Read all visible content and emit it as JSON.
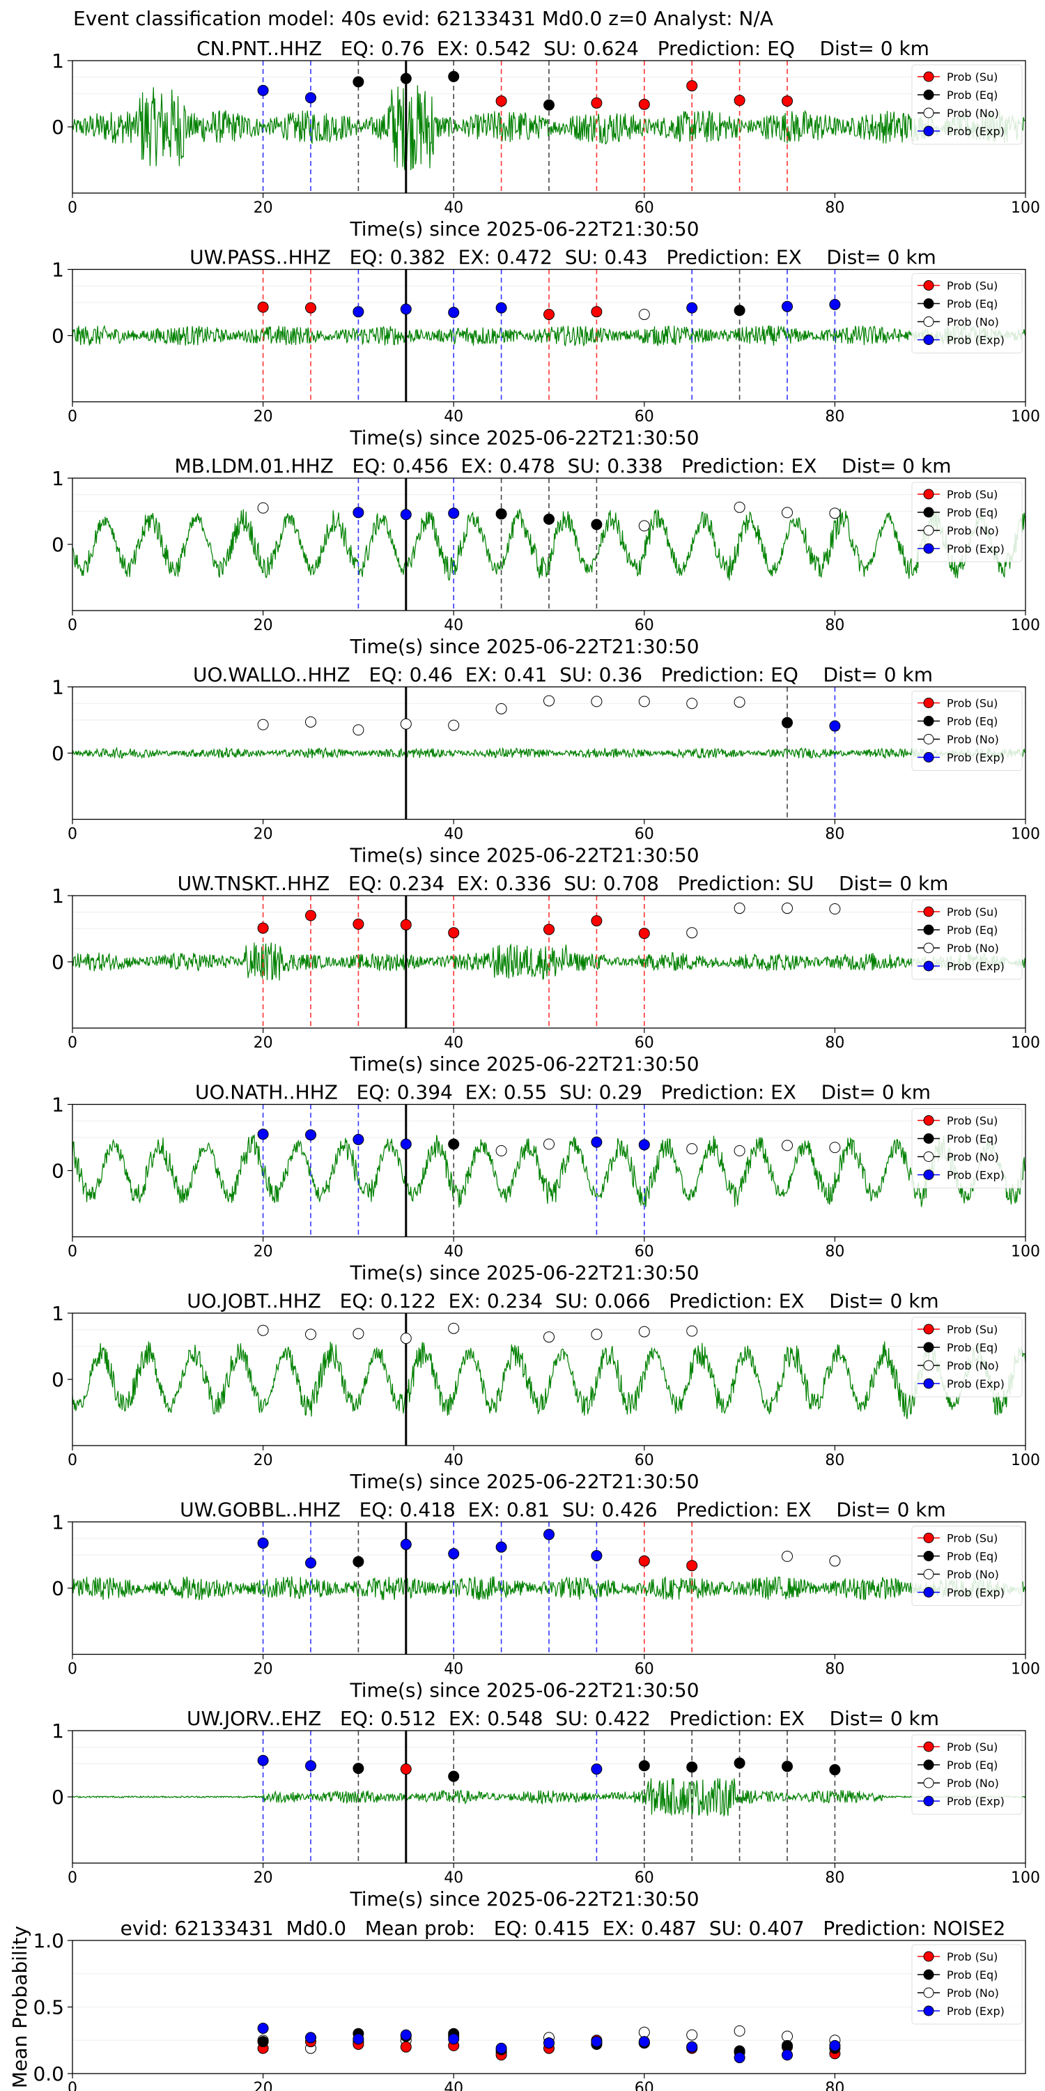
{
  "figure": {
    "suptitle": "Event classification model: 40s evid: 62133431 Md0.0 z=0 Analyst: N/A",
    "xlabel": "Time(s) since 2025-06-22T21:30:50",
    "legend": [
      "Prob (Su)",
      "Prob (Eq)",
      "Prob (No)",
      "Prob (Exp)"
    ],
    "class_colors": {
      "Su": "#ff0000",
      "Eq": "#000000",
      "No": "#ffffff",
      "Exp": "#0000ff"
    },
    "waveform_color": "#008000"
  },
  "chart_data": [
    {
      "type": "line",
      "title": "CN.PNT..HHZ   EQ: 0.76  EX: 0.542  SU: 0.624   Prediction: EQ    Dist= 0 km",
      "xlim": [
        0,
        100
      ],
      "ylim": [
        -1,
        1
      ],
      "xticks": [
        0,
        20,
        40,
        60,
        80,
        100
      ],
      "yticks": [
        0,
        1
      ],
      "event_line_x": 35,
      "amplitude": 1.0,
      "points": [
        {
          "x": 20,
          "y": 0.55,
          "cls": "Exp"
        },
        {
          "x": 25,
          "y": 0.44,
          "cls": "Exp"
        },
        {
          "x": 30,
          "y": 0.68,
          "cls": "Eq"
        },
        {
          "x": 35,
          "y": 0.73,
          "cls": "Eq"
        },
        {
          "x": 40,
          "y": 0.76,
          "cls": "Eq"
        },
        {
          "x": 45,
          "y": 0.39,
          "cls": "Su"
        },
        {
          "x": 50,
          "y": 0.33,
          "cls": "Eq"
        },
        {
          "x": 55,
          "y": 0.36,
          "cls": "Su"
        },
        {
          "x": 60,
          "y": 0.34,
          "cls": "Su"
        },
        {
          "x": 65,
          "y": 0.62,
          "cls": "Su"
        },
        {
          "x": 70,
          "y": 0.4,
          "cls": "Su"
        },
        {
          "x": 75,
          "y": 0.39,
          "cls": "Su"
        }
      ]
    },
    {
      "type": "line",
      "title": "UW.PASS..HHZ   EQ: 0.382  EX: 0.472  SU: 0.43   Prediction: EX    Dist= 0 km",
      "xlim": [
        0,
        100
      ],
      "ylim": [
        -1,
        1
      ],
      "xticks": [
        0,
        20,
        40,
        60,
        80,
        100
      ],
      "yticks": [
        0,
        1
      ],
      "event_line_x": 35,
      "amplitude": 0.6,
      "points": [
        {
          "x": 20,
          "y": 0.43,
          "cls": "Su"
        },
        {
          "x": 25,
          "y": 0.42,
          "cls": "Su"
        },
        {
          "x": 30,
          "y": 0.36,
          "cls": "Exp"
        },
        {
          "x": 35,
          "y": 0.4,
          "cls": "Exp"
        },
        {
          "x": 40,
          "y": 0.35,
          "cls": "Exp"
        },
        {
          "x": 45,
          "y": 0.42,
          "cls": "Exp"
        },
        {
          "x": 50,
          "y": 0.32,
          "cls": "Su"
        },
        {
          "x": 55,
          "y": 0.36,
          "cls": "Su"
        },
        {
          "x": 60,
          "y": 0.32,
          "cls": "No"
        },
        {
          "x": 65,
          "y": 0.42,
          "cls": "Exp"
        },
        {
          "x": 70,
          "y": 0.38,
          "cls": "Eq"
        },
        {
          "x": 75,
          "y": 0.44,
          "cls": "Exp"
        },
        {
          "x": 80,
          "y": 0.47,
          "cls": "Exp"
        }
      ]
    },
    {
      "type": "line",
      "title": "MB.LDM.01.HHZ   EQ: 0.456  EX: 0.478  SU: 0.338   Prediction: EX    Dist= 0 km",
      "xlim": [
        0,
        100
      ],
      "ylim": [
        -1,
        1
      ],
      "xticks": [
        0,
        20,
        40,
        60,
        80,
        100
      ],
      "yticks": [
        0,
        1
      ],
      "event_line_x": 35,
      "amplitude": 0.75,
      "points": [
        {
          "x": 20,
          "y": 0.55,
          "cls": "No"
        },
        {
          "x": 30,
          "y": 0.48,
          "cls": "Exp"
        },
        {
          "x": 35,
          "y": 0.45,
          "cls": "Exp"
        },
        {
          "x": 40,
          "y": 0.47,
          "cls": "Exp"
        },
        {
          "x": 45,
          "y": 0.46,
          "cls": "Eq"
        },
        {
          "x": 50,
          "y": 0.38,
          "cls": "Eq"
        },
        {
          "x": 55,
          "y": 0.3,
          "cls": "Eq"
        },
        {
          "x": 60,
          "y": 0.28,
          "cls": "No"
        },
        {
          "x": 70,
          "y": 0.56,
          "cls": "No"
        },
        {
          "x": 75,
          "y": 0.48,
          "cls": "No"
        },
        {
          "x": 80,
          "y": 0.47,
          "cls": "No"
        }
      ]
    },
    {
      "type": "line",
      "title": "UO.WALLO..HHZ   EQ: 0.46  EX: 0.41  SU: 0.36   Prediction: EQ    Dist= 0 km",
      "xlim": [
        0,
        100
      ],
      "ylim": [
        -1,
        1
      ],
      "xticks": [
        0,
        20,
        40,
        60,
        80,
        100
      ],
      "yticks": [
        0,
        1
      ],
      "event_line_x": 35,
      "amplitude": 0.3,
      "points": [
        {
          "x": 20,
          "y": 0.43,
          "cls": "No"
        },
        {
          "x": 25,
          "y": 0.47,
          "cls": "No"
        },
        {
          "x": 30,
          "y": 0.35,
          "cls": "No"
        },
        {
          "x": 35,
          "y": 0.44,
          "cls": "No"
        },
        {
          "x": 40,
          "y": 0.42,
          "cls": "No"
        },
        {
          "x": 45,
          "y": 0.67,
          "cls": "No"
        },
        {
          "x": 50,
          "y": 0.79,
          "cls": "No"
        },
        {
          "x": 55,
          "y": 0.78,
          "cls": "No"
        },
        {
          "x": 60,
          "y": 0.78,
          "cls": "No"
        },
        {
          "x": 65,
          "y": 0.75,
          "cls": "No"
        },
        {
          "x": 70,
          "y": 0.77,
          "cls": "No"
        },
        {
          "x": 75,
          "y": 0.46,
          "cls": "Eq"
        },
        {
          "x": 80,
          "y": 0.41,
          "cls": "Exp"
        }
      ]
    },
    {
      "type": "line",
      "title": "UW.TNSKT..HHZ   EQ: 0.234  EX: 0.336  SU: 0.708   Prediction: SU    Dist= 0 km",
      "xlim": [
        0,
        100
      ],
      "ylim": [
        -1,
        1
      ],
      "xticks": [
        0,
        20,
        40,
        60,
        80,
        100
      ],
      "yticks": [
        0,
        1
      ],
      "event_line_x": 35,
      "amplitude": 0.55,
      "points": [
        {
          "x": 20,
          "y": 0.51,
          "cls": "Su"
        },
        {
          "x": 25,
          "y": 0.7,
          "cls": "Su"
        },
        {
          "x": 30,
          "y": 0.57,
          "cls": "Su"
        },
        {
          "x": 35,
          "y": 0.56,
          "cls": "Su"
        },
        {
          "x": 40,
          "y": 0.44,
          "cls": "Su"
        },
        {
          "x": 50,
          "y": 0.49,
          "cls": "Su"
        },
        {
          "x": 55,
          "y": 0.62,
          "cls": "Su"
        },
        {
          "x": 60,
          "y": 0.43,
          "cls": "Su"
        },
        {
          "x": 65,
          "y": 0.44,
          "cls": "No"
        },
        {
          "x": 70,
          "y": 0.81,
          "cls": "No"
        },
        {
          "x": 75,
          "y": 0.81,
          "cls": "No"
        },
        {
          "x": 80,
          "y": 0.8,
          "cls": "No"
        }
      ]
    },
    {
      "type": "line",
      "title": "UO.NATH..HHZ   EQ: 0.394  EX: 0.55  SU: 0.29   Prediction: EX    Dist= 0 km",
      "xlim": [
        0,
        100
      ],
      "ylim": [
        -1,
        1
      ],
      "xticks": [
        0,
        20,
        40,
        60,
        80,
        100
      ],
      "yticks": [
        0,
        1
      ],
      "event_line_x": 35,
      "amplitude": 0.75,
      "points": [
        {
          "x": 20,
          "y": 0.55,
          "cls": "Exp"
        },
        {
          "x": 25,
          "y": 0.54,
          "cls": "Exp"
        },
        {
          "x": 30,
          "y": 0.47,
          "cls": "Exp"
        },
        {
          "x": 35,
          "y": 0.4,
          "cls": "Exp"
        },
        {
          "x": 40,
          "y": 0.4,
          "cls": "Eq"
        },
        {
          "x": 45,
          "y": 0.3,
          "cls": "No"
        },
        {
          "x": 50,
          "y": 0.4,
          "cls": "No"
        },
        {
          "x": 55,
          "y": 0.43,
          "cls": "Exp"
        },
        {
          "x": 60,
          "y": 0.39,
          "cls": "Exp"
        },
        {
          "x": 65,
          "y": 0.33,
          "cls": "No"
        },
        {
          "x": 70,
          "y": 0.3,
          "cls": "No"
        },
        {
          "x": 75,
          "y": 0.38,
          "cls": "No"
        },
        {
          "x": 80,
          "y": 0.35,
          "cls": "No"
        }
      ]
    },
    {
      "type": "line",
      "title": "UO.JOBT..HHZ   EQ: 0.122  EX: 0.234  SU: 0.066   Prediction: EX    Dist= 0 km",
      "xlim": [
        0,
        100
      ],
      "ylim": [
        -1,
        1
      ],
      "xticks": [
        0,
        20,
        40,
        60,
        80,
        100
      ],
      "yticks": [
        0,
        1
      ],
      "event_line_x": 35,
      "amplitude": 0.8,
      "points": [
        {
          "x": 20,
          "y": 0.74,
          "cls": "No"
        },
        {
          "x": 25,
          "y": 0.68,
          "cls": "No"
        },
        {
          "x": 30,
          "y": 0.69,
          "cls": "No"
        },
        {
          "x": 35,
          "y": 0.62,
          "cls": "No"
        },
        {
          "x": 40,
          "y": 0.77,
          "cls": "No"
        },
        {
          "x": 50,
          "y": 0.64,
          "cls": "No"
        },
        {
          "x": 55,
          "y": 0.68,
          "cls": "No"
        },
        {
          "x": 60,
          "y": 0.72,
          "cls": "No"
        },
        {
          "x": 65,
          "y": 0.73,
          "cls": "No"
        }
      ]
    },
    {
      "type": "line",
      "title": "UW.GOBBL..HHZ   EQ: 0.418  EX: 0.81  SU: 0.426   Prediction: EX    Dist= 0 km",
      "xlim": [
        0,
        100
      ],
      "ylim": [
        -1,
        1
      ],
      "xticks": [
        0,
        20,
        40,
        60,
        80,
        100
      ],
      "yticks": [
        0,
        1
      ],
      "event_line_x": 35,
      "amplitude": 0.7,
      "points": [
        {
          "x": 20,
          "y": 0.68,
          "cls": "Exp"
        },
        {
          "x": 25,
          "y": 0.38,
          "cls": "Exp"
        },
        {
          "x": 30,
          "y": 0.4,
          "cls": "Eq"
        },
        {
          "x": 35,
          "y": 0.66,
          "cls": "Exp"
        },
        {
          "x": 40,
          "y": 0.52,
          "cls": "Exp"
        },
        {
          "x": 45,
          "y": 0.62,
          "cls": "Exp"
        },
        {
          "x": 50,
          "y": 0.81,
          "cls": "Exp"
        },
        {
          "x": 55,
          "y": 0.49,
          "cls": "Exp"
        },
        {
          "x": 60,
          "y": 0.41,
          "cls": "Su"
        },
        {
          "x": 65,
          "y": 0.34,
          "cls": "Su"
        },
        {
          "x": 75,
          "y": 0.48,
          "cls": "No"
        },
        {
          "x": 80,
          "y": 0.41,
          "cls": "No"
        }
      ]
    },
    {
      "type": "line",
      "title": "UW.JORV..EHZ   EQ: 0.512  EX: 0.548  SU: 0.422   Prediction: EX    Dist= 0 km",
      "xlim": [
        0,
        100
      ],
      "ylim": [
        -1,
        1
      ],
      "xticks": [
        0,
        20,
        40,
        60,
        80,
        100
      ],
      "yticks": [
        0,
        1
      ],
      "event_line_x": 35,
      "amplitude": 0.4,
      "points": [
        {
          "x": 20,
          "y": 0.55,
          "cls": "Exp"
        },
        {
          "x": 25,
          "y": 0.47,
          "cls": "Exp"
        },
        {
          "x": 30,
          "y": 0.43,
          "cls": "Eq"
        },
        {
          "x": 35,
          "y": 0.42,
          "cls": "Su"
        },
        {
          "x": 40,
          "y": 0.31,
          "cls": "Eq"
        },
        {
          "x": 55,
          "y": 0.42,
          "cls": "Exp"
        },
        {
          "x": 60,
          "y": 0.47,
          "cls": "Eq"
        },
        {
          "x": 65,
          "y": 0.45,
          "cls": "Eq"
        },
        {
          "x": 70,
          "y": 0.51,
          "cls": "Eq"
        },
        {
          "x": 75,
          "y": 0.46,
          "cls": "Eq"
        },
        {
          "x": 80,
          "y": 0.41,
          "cls": "Eq"
        }
      ]
    },
    {
      "type": "scatter",
      "title": "evid: 62133431  Md0.0   Mean prob:   EQ: 0.415  EX: 0.487  SU: 0.407   Prediction: NOISE2",
      "ylabel": "Mean Probability",
      "xlim": [
        0,
        100
      ],
      "ylim": [
        0,
        1
      ],
      "xticks": [
        0,
        20,
        40,
        60,
        80
      ],
      "yticks": [
        0.0,
        0.5,
        1.0
      ],
      "ytick_labels": [
        "0.0",
        "0.5",
        "1.0"
      ],
      "series": [
        {
          "cls": "No",
          "x": [
            20,
            25,
            30,
            35,
            40,
            45,
            50,
            55,
            60,
            65,
            70,
            75,
            80
          ],
          "y": [
            0.25,
            0.19,
            0.24,
            0.25,
            0.28,
            0.16,
            0.27,
            0.23,
            0.31,
            0.29,
            0.32,
            0.28,
            0.25
          ]
        },
        {
          "cls": "Su",
          "x": [
            20,
            25,
            30,
            35,
            40,
            45,
            50,
            55,
            60,
            65,
            70,
            75,
            80
          ],
          "y": [
            0.19,
            0.24,
            0.22,
            0.2,
            0.21,
            0.14,
            0.19,
            0.25,
            0.23,
            0.19,
            0.16,
            0.2,
            0.15
          ]
        },
        {
          "cls": "Eq",
          "x": [
            20,
            25,
            30,
            35,
            40,
            45,
            50,
            55,
            60,
            65,
            70,
            75,
            80
          ],
          "y": [
            0.24,
            0.27,
            0.3,
            0.28,
            0.3,
            0.18,
            0.23,
            0.22,
            0.23,
            0.2,
            0.17,
            0.21,
            0.19
          ]
        },
        {
          "cls": "Exp",
          "x": [
            20,
            25,
            30,
            35,
            40,
            45,
            50,
            55,
            60,
            65,
            70,
            75,
            80
          ],
          "y": [
            0.34,
            0.27,
            0.26,
            0.29,
            0.26,
            0.19,
            0.23,
            0.24,
            0.24,
            0.2,
            0.12,
            0.14,
            0.21
          ]
        }
      ]
    }
  ]
}
